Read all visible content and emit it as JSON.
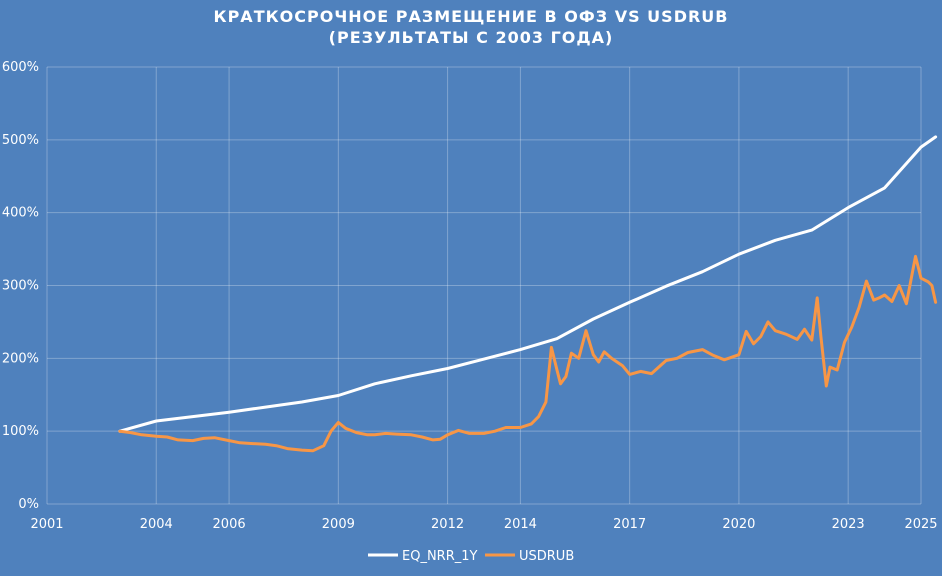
{
  "chart_data": {
    "type": "line",
    "title": "КРАТКОСРОЧНОЕ РАЗМЕЩЕНИЕ В ОФЗ VS USDRUB",
    "subtitle": "(РЕЗУЛЬТАТЫ С 2003 ГОДА)",
    "xlabel": "",
    "ylabel": "",
    "xlim": [
      2001,
      2025
    ],
    "ylim": [
      0,
      600
    ],
    "x_ticks": [
      2001,
      2004,
      2006,
      2009,
      2012,
      2014,
      2017,
      2020,
      2023,
      2025
    ],
    "x_tick_labels": [
      "2001",
      "2004",
      "2006",
      "2009",
      "2012",
      "2014",
      "2017",
      "2020",
      "2023",
      "2025"
    ],
    "y_ticks": [
      0,
      100,
      200,
      300,
      400,
      500,
      600
    ],
    "y_tick_labels": [
      "0%",
      "100%",
      "200%",
      "300%",
      "400%",
      "500%",
      "600%"
    ],
    "grid": true,
    "legend_position": "bottom",
    "colors": {
      "background": "#4F81BD",
      "eq": "#FFFFFF",
      "usd": "#F79646"
    },
    "series": [
      {
        "name": "EQ_NRR_1Y",
        "color": "#FFFFFF",
        "x": [
          2003.0,
          2004.0,
          2005.0,
          2006.0,
          2007.0,
          2008.0,
          2009.0,
          2010.0,
          2011.0,
          2012.0,
          2013.0,
          2014.0,
          2015.0,
          2016.0,
          2017.0,
          2018.0,
          2019.0,
          2020.0,
          2021.0,
          2022.0,
          2023.0,
          2024.0,
          2025.0,
          2025.4
        ],
        "y": [
          100,
          114,
          120,
          126,
          133,
          140,
          149,
          165,
          176,
          186,
          199,
          212,
          227,
          254,
          277,
          299,
          319,
          343,
          362,
          376,
          407,
          434,
          490,
          504
        ]
      },
      {
        "name": "USDRUB",
        "color": "#F79646",
        "x": [
          2003.0,
          2003.3,
          2003.6,
          2004.0,
          2004.3,
          2004.6,
          2005.0,
          2005.3,
          2005.6,
          2006.0,
          2006.3,
          2006.6,
          2007.0,
          2007.3,
          2007.6,
          2008.0,
          2008.3,
          2008.6,
          2008.8,
          2009.0,
          2009.2,
          2009.5,
          2009.8,
          2010.0,
          2010.3,
          2010.6,
          2011.0,
          2011.3,
          2011.6,
          2011.8,
          2012.0,
          2012.3,
          2012.6,
          2013.0,
          2013.3,
          2013.6,
          2014.0,
          2014.3,
          2014.5,
          2014.7,
          2014.85,
          2015.0,
          2015.1,
          2015.25,
          2015.4,
          2015.6,
          2015.8,
          2016.0,
          2016.15,
          2016.3,
          2016.5,
          2016.8,
          2017.0,
          2017.3,
          2017.6,
          2018.0,
          2018.3,
          2018.6,
          2019.0,
          2019.3,
          2019.6,
          2020.0,
          2020.2,
          2020.4,
          2020.6,
          2020.8,
          2021.0,
          2021.3,
          2021.6,
          2021.8,
          2022.0,
          2022.15,
          2022.25,
          2022.4,
          2022.5,
          2022.7,
          2022.9,
          2023.1,
          2023.3,
          2023.5,
          2023.7,
          2023.85,
          2024.0,
          2024.2,
          2024.4,
          2024.6,
          2024.85,
          2025.0,
          2025.2,
          2025.3,
          2025.4
        ],
        "y": [
          100,
          98,
          95,
          93,
          92,
          88,
          87,
          90,
          91,
          87,
          84,
          83,
          82,
          80,
          76,
          74,
          73,
          80,
          100,
          112,
          104,
          98,
          95,
          95,
          97,
          96,
          95,
          92,
          88,
          89,
          95,
          101,
          97,
          97,
          100,
          105,
          105,
          110,
          120,
          140,
          215,
          185,
          165,
          175,
          207,
          200,
          238,
          205,
          195,
          209,
          200,
          190,
          178,
          182,
          179,
          197,
          200,
          208,
          212,
          204,
          198,
          205,
          237,
          220,
          230,
          250,
          238,
          233,
          226,
          240,
          225,
          283,
          230,
          162,
          188,
          184,
          222,
          243,
          270,
          306,
          280,
          283,
          287,
          278,
          300,
          275,
          340,
          310,
          305,
          300,
          277
        ]
      }
    ]
  }
}
